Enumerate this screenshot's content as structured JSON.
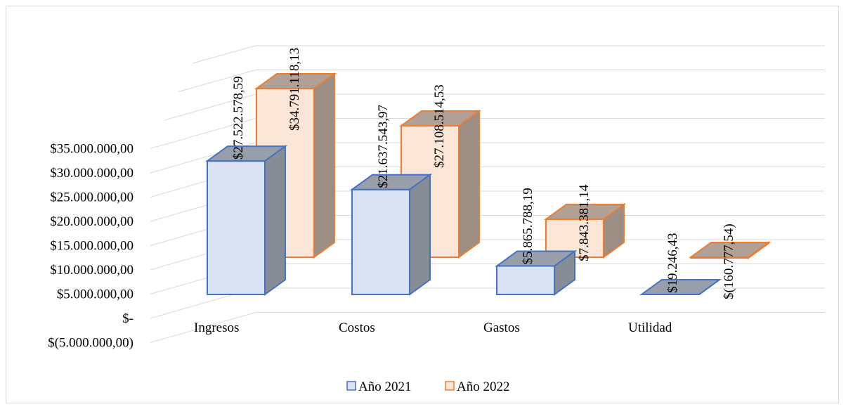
{
  "chart_data": {
    "type": "bar",
    "title": "",
    "xlabel": "",
    "ylabel": "",
    "categories": [
      "Ingresos",
      "Costos",
      "Gastos",
      "Utilidad"
    ],
    "series": [
      {
        "name": "Año 2021",
        "values": [
          27522578.59,
          21637543.97,
          5865788.19,
          19246.43
        ],
        "labels": [
          "$27.522.578,59",
          "$21.637.543,97",
          "$5.865.788,19",
          "$19.246,43"
        ],
        "color": "#4472c4",
        "fill": "#dae3f3"
      },
      {
        "name": "Año 2022",
        "values": [
          34791118.13,
          27108514.53,
          7843381.14,
          -160777.54
        ],
        "labels": [
          "$34.791.118,13",
          "$27.108.514,53",
          "$7.843.381,14",
          "$(160.777,54)"
        ],
        "color": "#ed7d31",
        "fill": "#fbe5d6"
      }
    ],
    "yticks": [
      {
        "value": -5000000,
        "label": "$(5.000.000,00)"
      },
      {
        "value": 0,
        "label": "$-"
      },
      {
        "value": 5000000,
        "label": "$5.000.000,00"
      },
      {
        "value": 10000000,
        "label": "$10.000.000,00"
      },
      {
        "value": 15000000,
        "label": "$15.000.000,00"
      },
      {
        "value": 20000000,
        "label": "$20.000.000,00"
      },
      {
        "value": 25000000,
        "label": "$25.000.000,00"
      },
      {
        "value": 30000000,
        "label": "$30.000.000,00"
      },
      {
        "value": 35000000,
        "label": "$35.000.000,00"
      }
    ],
    "ylim": [
      -5000000,
      35000000
    ],
    "grid": true,
    "legend_position": "bottom",
    "style": "3d-column"
  }
}
